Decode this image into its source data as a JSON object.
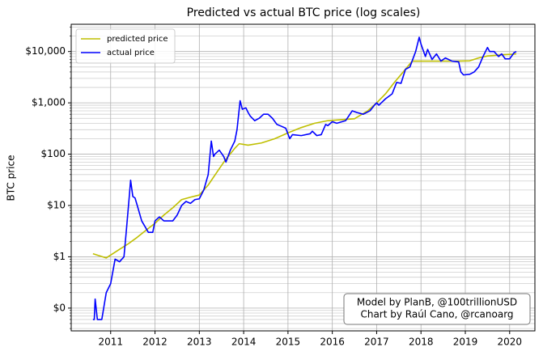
{
  "chart_data": {
    "type": "line",
    "title": "Predicted vs actual BTC price (log scales)",
    "ylabel": "BTC price",
    "yscale": "log",
    "grid": true,
    "legend": "upper left",
    "annotation": [
      "Model by PlanB, @100trillionUSD",
      "Chart by Raúl Cano, @rcanoarg"
    ],
    "xlim": [
      2010.11,
      2020.57
    ],
    "xticks": [
      2011,
      2012,
      2013,
      2014,
      2015,
      2016,
      2017,
      2018,
      2019,
      2020
    ],
    "ylim": [
      0.036,
      34000
    ],
    "yticks": [
      {
        "value": 0.1,
        "label": "$0"
      },
      {
        "value": 1,
        "label": "$1"
      },
      {
        "value": 10,
        "label": "$10"
      },
      {
        "value": 100,
        "label": "$100"
      },
      {
        "value": 1000,
        "label": "$1,000"
      },
      {
        "value": 10000,
        "label": "$10,000"
      }
    ],
    "yminorticks": [
      0.04,
      0.05,
      0.06,
      0.07,
      0.08,
      0.09,
      0.2,
      0.3,
      0.4,
      0.5,
      0.6,
      0.7,
      0.8,
      0.9,
      2,
      3,
      4,
      5,
      6,
      7,
      8,
      9,
      20,
      30,
      40,
      50,
      60,
      70,
      80,
      90,
      200,
      300,
      400,
      500,
      600,
      700,
      800,
      900,
      2000,
      3000,
      4000,
      5000,
      6000,
      7000,
      8000,
      9000,
      20000,
      30000
    ],
    "series": [
      {
        "name": "predicted price",
        "color": "#bfbf00",
        "x": [
          2010.6,
          2010.9,
          2011.2,
          2011.4,
          2011.6,
          2011.8,
          2012.0,
          2012.2,
          2012.4,
          2012.6,
          2012.8,
          2013.0,
          2013.2,
          2013.4,
          2013.6,
          2013.8,
          2013.9,
          2014.1,
          2014.4,
          2014.7,
          2015.0,
          2015.3,
          2015.6,
          2015.9,
          2016.2,
          2016.5,
          2016.8,
          2017.0,
          2017.2,
          2017.4,
          2017.6,
          2017.8,
          2017.9,
          2018.2,
          2018.5,
          2018.8,
          2019.1,
          2019.3,
          2019.5,
          2019.8,
          2020.0,
          2020.15
        ],
        "values": [
          1.15,
          0.95,
          1.4,
          1.8,
          2.4,
          3.3,
          4.5,
          6.5,
          9,
          13,
          14.5,
          16,
          25,
          45,
          80,
          130,
          160,
          150,
          165,
          200,
          260,
          330,
          400,
          450,
          470,
          490,
          700,
          1000,
          1500,
          2500,
          4000,
          6500,
          6500,
          6500,
          6500,
          6500,
          6600,
          7500,
          8200,
          8600,
          8800,
          9000
        ]
      },
      {
        "name": "actual price",
        "color": "#0000ff",
        "x": [
          2010.6,
          2010.63,
          2010.65,
          2010.7,
          2010.8,
          2010.9,
          2011.0,
          2011.1,
          2011.2,
          2011.3,
          2011.35,
          2011.42,
          2011.45,
          2011.5,
          2011.55,
          2011.6,
          2011.7,
          2011.85,
          2011.95,
          2012.0,
          2012.1,
          2012.2,
          2012.4,
          2012.5,
          2012.6,
          2012.7,
          2012.8,
          2012.9,
          2013.0,
          2013.1,
          2013.2,
          2013.27,
          2013.32,
          2013.35,
          2013.45,
          2013.55,
          2013.6,
          2013.7,
          2013.8,
          2013.85,
          2013.92,
          2013.97,
          2014.05,
          2014.1,
          2014.15,
          2014.25,
          2014.35,
          2014.45,
          2014.55,
          2014.65,
          2014.75,
          2014.85,
          2014.95,
          2015.04,
          2015.1,
          2015.3,
          2015.5,
          2015.55,
          2015.65,
          2015.75,
          2015.85,
          2015.9,
          2016.0,
          2016.1,
          2016.3,
          2016.45,
          2016.55,
          2016.7,
          2016.85,
          2016.95,
          2017.0,
          2017.05,
          2017.2,
          2017.35,
          2017.45,
          2017.55,
          2017.65,
          2017.75,
          2017.88,
          2017.96,
          2018.0,
          2018.1,
          2018.15,
          2018.25,
          2018.35,
          2018.45,
          2018.55,
          2018.7,
          2018.85,
          2018.9,
          2018.96,
          2019.1,
          2019.2,
          2019.3,
          2019.4,
          2019.5,
          2019.55,
          2019.65,
          2019.75,
          2019.82,
          2019.9,
          2020.0,
          2020.1,
          2020.15
        ],
        "values": [
          0.06,
          0.06,
          0.15,
          0.06,
          0.06,
          0.2,
          0.3,
          0.9,
          0.8,
          1.0,
          3,
          15,
          31,
          15,
          14,
          10,
          5,
          3,
          3,
          5,
          6,
          5,
          5,
          6.5,
          10,
          12,
          11,
          13,
          13.5,
          20,
          40,
          180,
          90,
          100,
          120,
          90,
          70,
          120,
          180,
          300,
          1100,
          750,
          800,
          650,
          550,
          450,
          500,
          600,
          600,
          500,
          380,
          350,
          320,
          200,
          240,
          230,
          250,
          280,
          230,
          240,
          380,
          360,
          430,
          400,
          450,
          700,
          650,
          600,
          700,
          900,
          1000,
          900,
          1200,
          1500,
          2500,
          2400,
          4500,
          5000,
          10000,
          19000,
          14000,
          8000,
          11000,
          7000,
          9000,
          6500,
          7500,
          6500,
          6300,
          4000,
          3500,
          3600,
          4000,
          5000,
          8000,
          12000,
          10000,
          10000,
          8000,
          9000,
          7200,
          7200,
          9500,
          10000
        ]
      }
    ]
  }
}
